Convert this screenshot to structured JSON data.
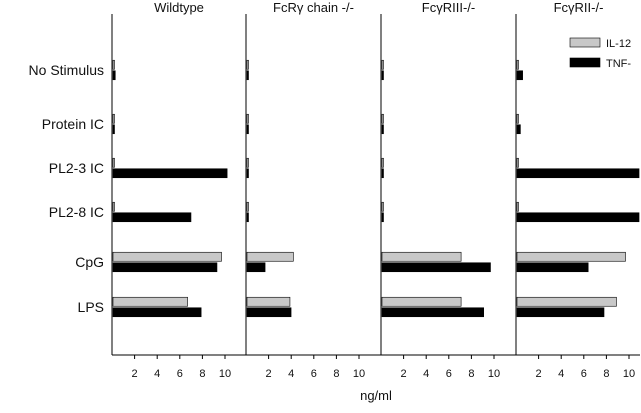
{
  "chart_data": {
    "type": "bar",
    "orientation": "horizontal",
    "xlabel": "ng/ml",
    "xlim": [
      0,
      11
    ],
    "xticks": [
      2,
      4,
      6,
      8,
      10
    ],
    "categories": [
      "No Stimulus",
      "Protein IC",
      "PL2-3 IC",
      "PL2-8 IC",
      "CpG",
      "LPS"
    ],
    "legend": {
      "position": "top-right",
      "entries": [
        {
          "name": "IL-12",
          "color": "#c8c8c8"
        },
        {
          "name": "TNF-",
          "color": "#000000"
        }
      ]
    },
    "panels": [
      {
        "title": "Wildtype",
        "series": [
          {
            "name": "IL-12",
            "values": [
              0.1,
              0.1,
              0.1,
              0.1,
              9.6,
              6.6
            ]
          },
          {
            "name": "TNF-",
            "values": [
              0.2,
              0.1,
              10.1,
              6.9,
              9.2,
              7.8
            ]
          }
        ]
      },
      {
        "title": "FcRγ chain -/-",
        "series": [
          {
            "name": "IL-12",
            "values": [
              0.1,
              0.1,
              0.1,
              0.1,
              4.1,
              3.8
            ]
          },
          {
            "name": "TNF-",
            "values": [
              0.1,
              0.1,
              0.1,
              0.1,
              1.6,
              3.9
            ]
          }
        ]
      },
      {
        "title": "FcγRIII-/-",
        "series": [
          {
            "name": "IL-12",
            "values": [
              0.1,
              0.1,
              0.1,
              0.1,
              7.0,
              7.0
            ]
          },
          {
            "name": "TNF-",
            "values": [
              0.1,
              0.1,
              0.1,
              0.1,
              9.6,
              9.0
            ]
          }
        ]
      },
      {
        "title": "FcγRII-/-",
        "series": [
          {
            "name": "IL-12",
            "values": [
              0.1,
              0.1,
              0.1,
              0.1,
              9.6,
              8.8
            ]
          },
          {
            "name": "TNF-",
            "values": [
              0.5,
              0.3,
              10.8,
              10.8,
              6.3,
              7.7
            ]
          }
        ]
      }
    ]
  }
}
